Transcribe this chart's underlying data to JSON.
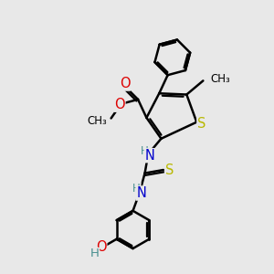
{
  "bg_color": "#e8e8e8",
  "bond_color": "#000000",
  "bond_width": 1.8,
  "atom_colors": {
    "S": "#b8b800",
    "O": "#dd0000",
    "N": "#0000cc",
    "C": "#000000",
    "H": "#4a9090"
  },
  "font_size": 9.5
}
